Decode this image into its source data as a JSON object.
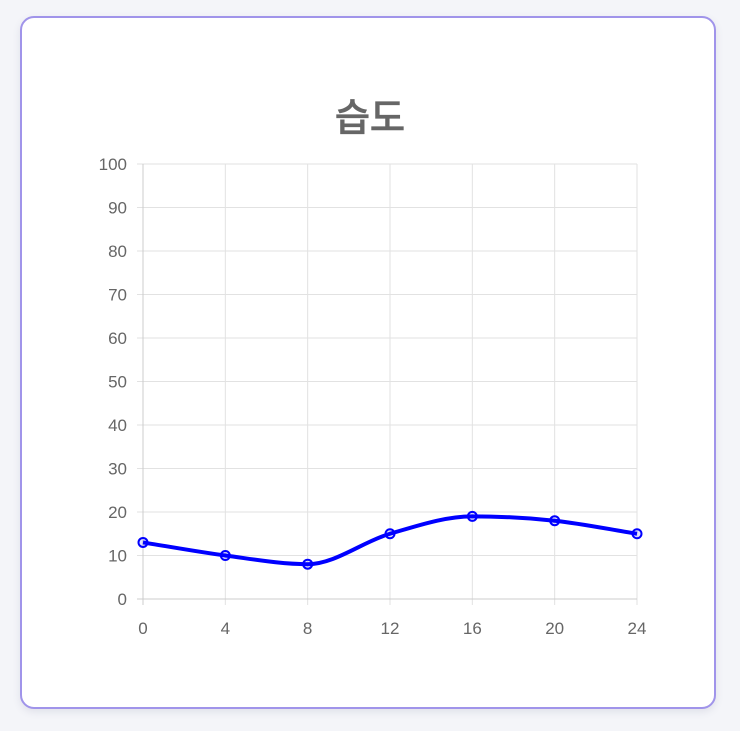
{
  "chart_data": {
    "type": "line",
    "title": "습도",
    "xlabel": "",
    "ylabel": "",
    "x": [
      0,
      4,
      8,
      12,
      16,
      20,
      24
    ],
    "series": [
      {
        "values": [
          13,
          10,
          8,
          15,
          19,
          18,
          15
        ],
        "color": "#0000ff"
      }
    ],
    "xlim": [
      0,
      24
    ],
    "ylim": [
      0,
      100
    ],
    "x_ticks": [
      "0",
      "4",
      "8",
      "12",
      "16",
      "20",
      "24"
    ],
    "y_ticks": [
      "0",
      "10",
      "20",
      "30",
      "40",
      "50",
      "60",
      "70",
      "80",
      "90",
      "100"
    ],
    "grid": true,
    "legend": "none"
  },
  "colors": {
    "card_border": "#a094ea",
    "grid": "#e2e2e2",
    "axis": "#cccccc",
    "text": "#666666"
  }
}
